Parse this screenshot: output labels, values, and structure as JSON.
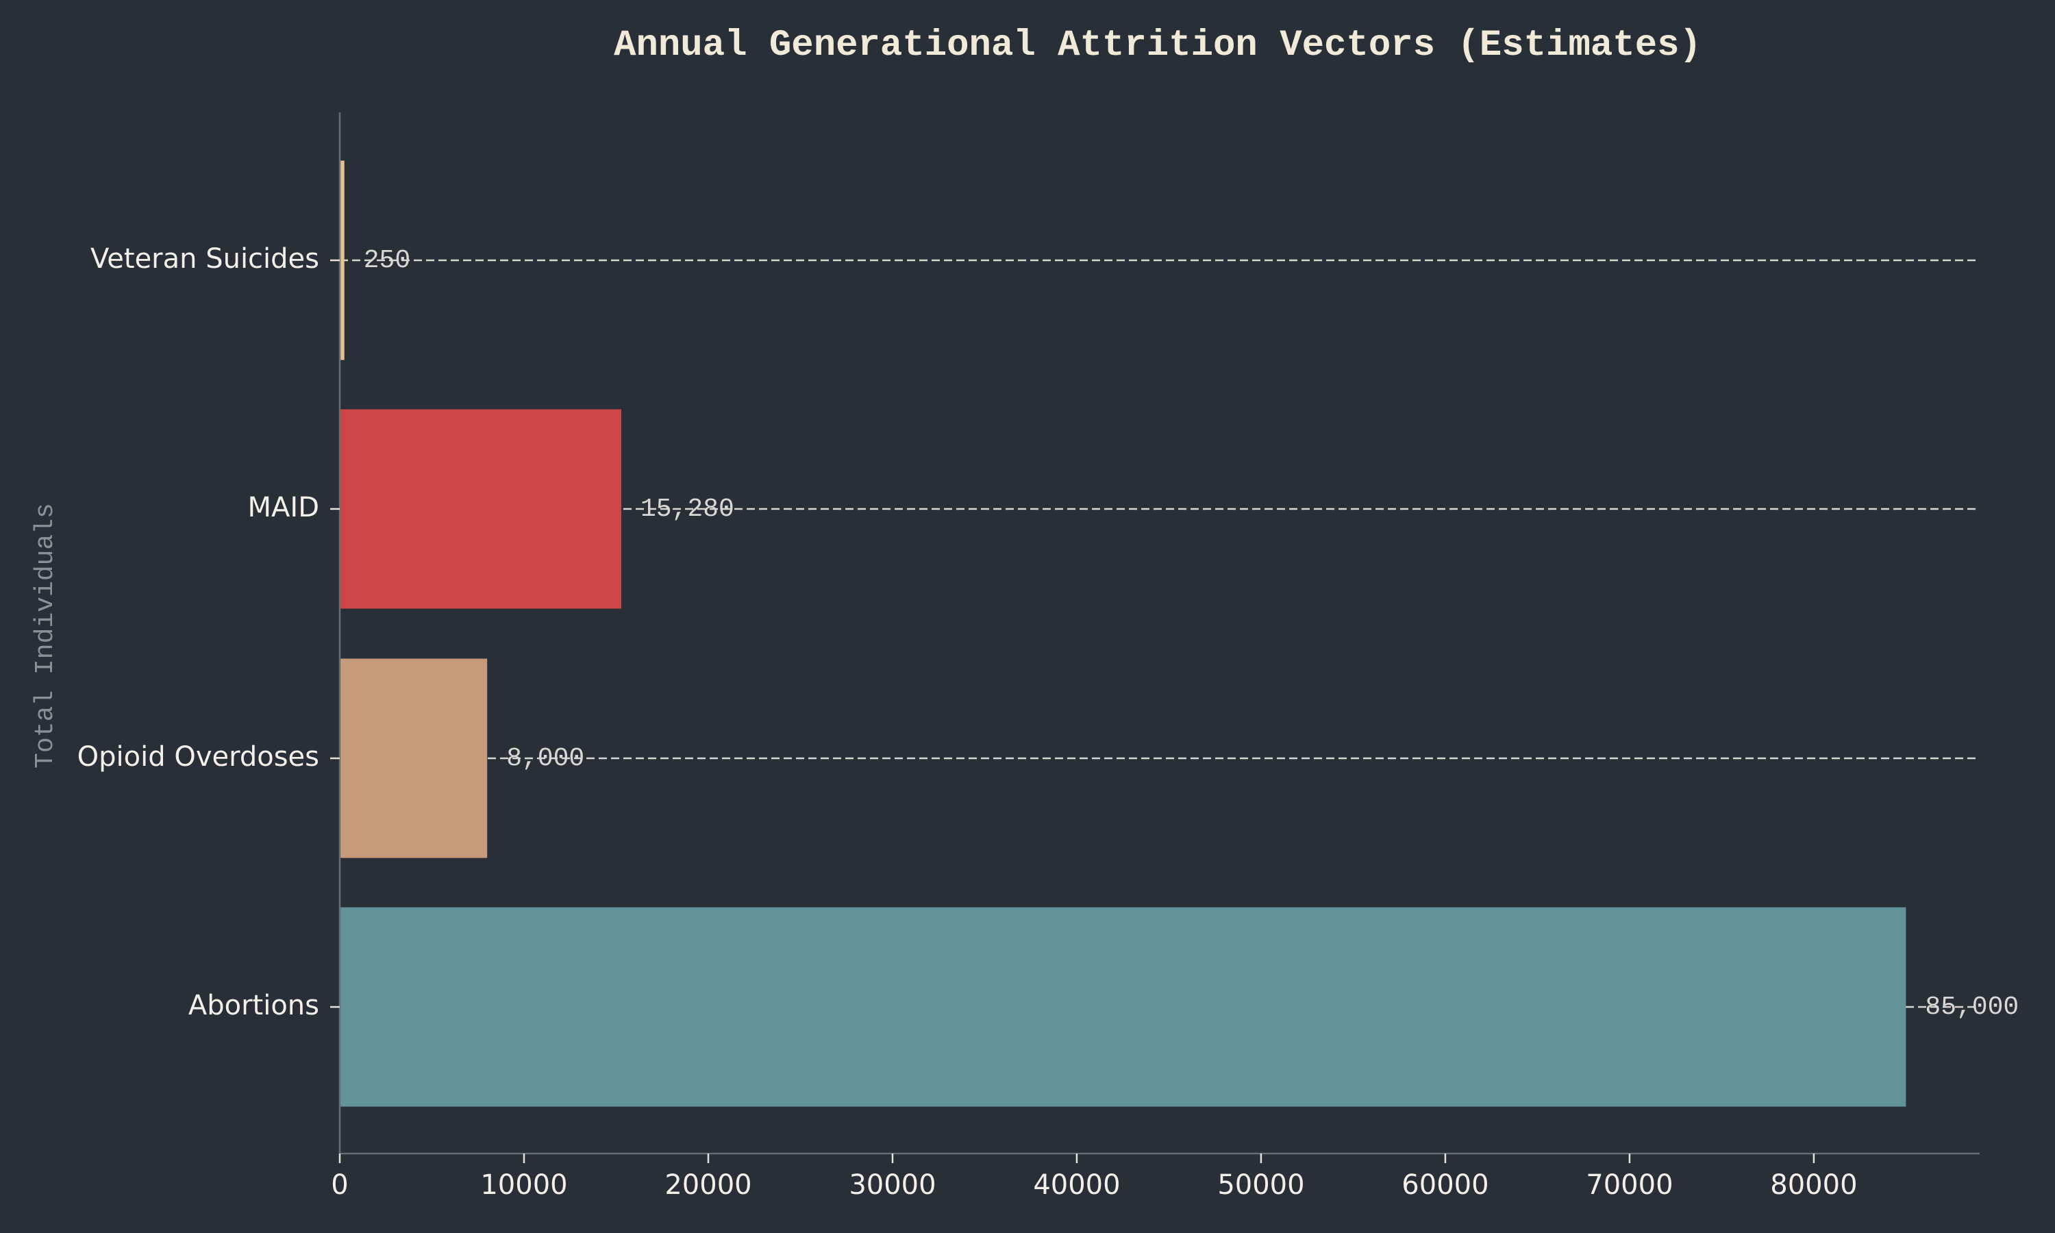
{
  "chart_data": {
    "type": "bar",
    "orientation": "horizontal",
    "title": "Annual Generational Attrition Vectors (Estimates)",
    "ylabel": "Total Individuals",
    "xlabel": "",
    "categories": [
      "Veteran Suicides",
      "MAID",
      "Opioid Overdoses",
      "Abortions"
    ],
    "values": [
      250,
      15280,
      8000,
      85000
    ],
    "value_labels": [
      "250",
      "15,280",
      "8,000",
      "85,000"
    ],
    "xlim": [
      0,
      89000
    ],
    "x_ticks": [
      0,
      10000,
      20000,
      30000,
      40000,
      50000,
      60000,
      70000,
      80000
    ],
    "x_tick_labels": [
      "0",
      "10000",
      "20000",
      "30000",
      "40000",
      "50000",
      "60000",
      "70000",
      "80000"
    ],
    "grid": "horizontal dashed at bar centers",
    "colors": [
      "#e5c18b",
      "#cd4647",
      "#c79b79",
      "#62929a"
    ],
    "background": "#282f37"
  }
}
